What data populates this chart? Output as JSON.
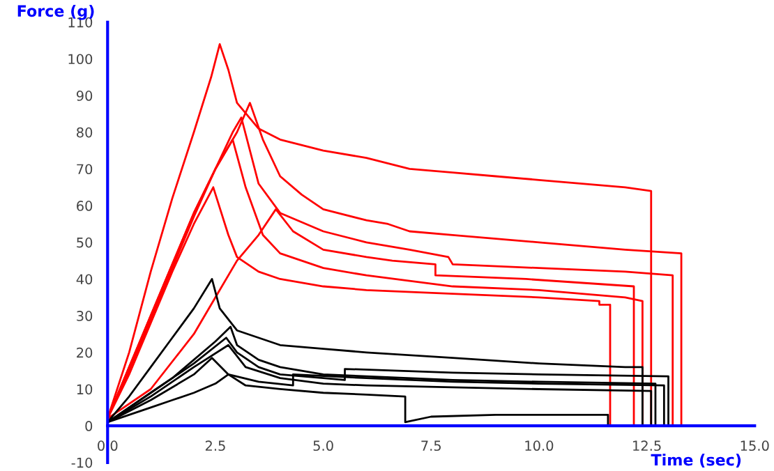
{
  "chart_data": {
    "type": "line",
    "xlabel": "Time (sec)",
    "ylabel": "Force (g)",
    "xlim": [
      0,
      15
    ],
    "ylim": [
      -10,
      110
    ],
    "xticks": [
      {
        "value": 0,
        "label": "0.0"
      },
      {
        "value": 2.5,
        "label": "2.5"
      },
      {
        "value": 5,
        "label": "5.0"
      },
      {
        "value": 7.5,
        "label": "7.5"
      },
      {
        "value": 10,
        "label": "10.0"
      },
      {
        "value": 12.5,
        "label": "12.5"
      },
      {
        "value": 15,
        "label": "15.0"
      }
    ],
    "yticks": [
      -10,
      0,
      10,
      20,
      30,
      40,
      50,
      60,
      70,
      80,
      90,
      100,
      110
    ],
    "grid": false,
    "legend": false,
    "line_style": "solid",
    "marker": "none",
    "series": [
      {
        "color": "#ff0000",
        "x": [
          0,
          0.5,
          1,
          1.5,
          2,
          2.4,
          2.6,
          2.8,
          3,
          3.5,
          4,
          5,
          6,
          7,
          8,
          9,
          10,
          11,
          12,
          12.6,
          12.6,
          12.7
        ],
        "values": [
          2,
          20,
          42,
          62,
          80,
          95,
          104,
          97,
          88,
          81,
          78,
          75,
          73,
          70,
          69,
          68,
          67,
          66,
          65,
          64,
          0,
          0
        ]
      },
      {
        "color": "#ff0000",
        "x": [
          0,
          0.5,
          1,
          1.5,
          2,
          2.5,
          3,
          3.3,
          3.6,
          4,
          4.5,
          5,
          6,
          6.5,
          7,
          8,
          10,
          12,
          13.3,
          13.3,
          14.2
        ],
        "values": [
          2,
          16,
          30,
          44,
          58,
          70,
          80,
          88,
          78,
          68,
          63,
          59,
          56,
          55,
          53,
          52,
          50,
          48,
          47,
          0,
          0
        ]
      },
      {
        "color": "#ff0000",
        "x": [
          0,
          0.5,
          1,
          1.5,
          2,
          2.5,
          2.9,
          3.1,
          3.5,
          4,
          5,
          6,
          7,
          7.9,
          8,
          10,
          12,
          13.1,
          13.1,
          13.4
        ],
        "values": [
          2,
          16,
          30,
          44,
          58,
          70,
          80,
          84,
          66,
          58,
          53,
          50,
          48,
          46,
          44,
          43,
          42,
          41,
          0,
          0
        ]
      },
      {
        "color": "#ff0000",
        "x": [
          0,
          0.5,
          1,
          1.5,
          2,
          2.5,
          2.9,
          3.2,
          3.6,
          4,
          5,
          6,
          8,
          10,
          12,
          12.4,
          12.4,
          12.6
        ],
        "values": [
          2,
          15,
          29,
          43,
          57,
          70,
          78,
          65,
          52,
          47,
          43,
          41,
          38,
          37,
          35,
          34,
          0,
          0
        ]
      },
      {
        "color": "#ff0000",
        "x": [
          0,
          0.5,
          1,
          1.5,
          2,
          2.45,
          2.8,
          3,
          3.5,
          4,
          5,
          6,
          8,
          10,
          11.4,
          11.4,
          11.65,
          11.65,
          12.5
        ],
        "values": [
          2,
          14,
          28,
          42,
          55,
          65,
          52,
          46,
          42,
          40,
          38,
          37,
          36,
          35,
          34,
          33,
          33,
          0,
          0
        ]
      },
      {
        "color": "#ff0000",
        "x": [
          0,
          1,
          2,
          2.5,
          3,
          3.5,
          3.9,
          4.3,
          5,
          6,
          6.6,
          7.6,
          7.6,
          9.7,
          12.2,
          12.2,
          12.5
        ],
        "values": [
          2,
          10,
          25,
          35,
          45,
          52,
          59,
          53,
          48,
          46,
          45,
          44,
          41,
          40,
          38,
          0,
          0
        ]
      },
      {
        "color": "#000000",
        "x": [
          0,
          0.5,
          1,
          1.5,
          2,
          2.42,
          2.6,
          3,
          3.5,
          4,
          5,
          6,
          8,
          10,
          12,
          12.4,
          12.4,
          12.6
        ],
        "values": [
          1,
          8,
          16,
          24,
          32,
          40,
          32,
          26,
          24,
          22,
          21,
          20,
          18.5,
          17,
          16,
          16,
          0,
          0
        ]
      },
      {
        "color": "#000000",
        "x": [
          0,
          0.5,
          1,
          1.5,
          2,
          2.5,
          2.85,
          3,
          3.5,
          4,
          5,
          6,
          8,
          10,
          12.7,
          12.7,
          12.9
        ],
        "values": [
          1,
          5,
          9,
          13,
          18,
          23,
          27,
          22,
          18,
          16,
          14,
          13.5,
          12.5,
          12,
          11.5,
          0,
          0
        ]
      },
      {
        "color": "#000000",
        "x": [
          0,
          1,
          2,
          2.75,
          3,
          3.5,
          4,
          5,
          5.5,
          5.5,
          8,
          10,
          13,
          13,
          13.2
        ],
        "values": [
          1,
          9,
          17,
          24,
          20,
          16,
          14,
          13,
          12.5,
          15.5,
          14.5,
          14,
          13.5,
          0,
          0
        ]
      },
      {
        "color": "#000000",
        "x": [
          0,
          1,
          2,
          2.8,
          3.2,
          4,
          5,
          6,
          8,
          10,
          12.6,
          12.6,
          12.8
        ],
        "values": [
          1,
          8,
          16,
          22,
          16,
          13,
          11.5,
          11,
          10.5,
          10,
          9.5,
          0,
          0
        ]
      },
      {
        "color": "#000000",
        "x": [
          0,
          1,
          2,
          2.42,
          2.8,
          3.5,
          4.3,
          4.3,
          6,
          8,
          10,
          12.9,
          12.9,
          13
        ],
        "values": [
          1,
          7,
          14,
          18.5,
          14,
          12,
          11,
          14,
          13,
          12,
          11.5,
          11,
          0,
          0
        ]
      },
      {
        "color": "#000000",
        "x": [
          0,
          0.5,
          1,
          1.5,
          2,
          2.5,
          2.8,
          3.2,
          4,
          5,
          6,
          6.9,
          6.9,
          7.5,
          9,
          11.6,
          11.6,
          12
        ],
        "values": [
          1,
          3,
          5,
          7,
          9,
          11.5,
          14,
          11,
          10,
          9,
          8.5,
          8,
          1,
          2.5,
          3,
          3,
          0,
          0
        ]
      }
    ]
  }
}
